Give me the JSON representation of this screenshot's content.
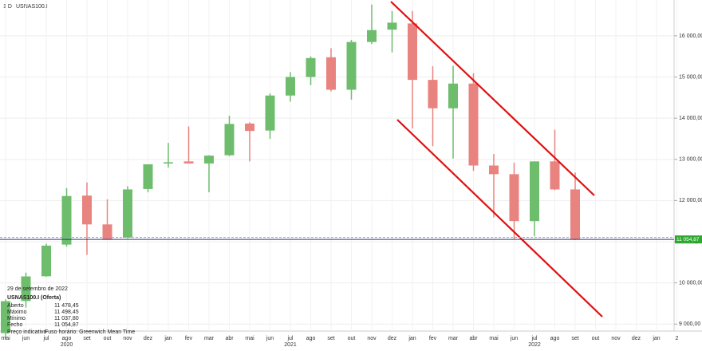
{
  "chart_data": {
    "type": "candlestick",
    "timeframe": "1 D",
    "symbol": "USNAS100.I",
    "categories": [
      "mai",
      "jun",
      "jul",
      "ago",
      "set",
      "out",
      "nov",
      "dez",
      "jan",
      "fev",
      "mar",
      "abr",
      "mai",
      "jun",
      "jul",
      "ago",
      "set",
      "out",
      "nov",
      "dez",
      "jan",
      "fev",
      "mar",
      "abr",
      "mai",
      "jun",
      "jul",
      "ago",
      "set",
      "out",
      "nov",
      "dez",
      "jan",
      "2"
    ],
    "years": [
      {
        "label": "2020",
        "at": 3
      },
      {
        "label": "2021",
        "at": 14
      },
      {
        "label": "2022",
        "at": 26
      }
    ],
    "open": [
      8780,
      9560,
      10160,
      10930,
      12120,
      11420,
      11100,
      12280,
      12900,
      12950,
      12900,
      13100,
      13870,
      13700,
      14550,
      15000,
      15480,
      14690,
      15850,
      16150,
      16300,
      14930,
      14240,
      14840,
      12850,
      12640,
      11500,
      12950,
      12270,
      null,
      null,
      null,
      null,
      null
    ],
    "high": [
      9600,
      10250,
      10950,
      12300,
      12440,
      12030,
      12350,
      12880,
      13400,
      13800,
      13100,
      14060,
      13900,
      14600,
      15120,
      15500,
      15700,
      15900,
      16760,
      16600,
      16600,
      15260,
      15270,
      15090,
      13130,
      12920,
      12950,
      13720,
      12680,
      null,
      null,
      null,
      null,
      null
    ],
    "low": [
      8650,
      9400,
      10150,
      10880,
      10680,
      11050,
      11080,
      12200,
      12800,
      12950,
      12200,
      13080,
      12950,
      13500,
      14400,
      14800,
      14650,
      14450,
      15800,
      15600,
      13750,
      13320,
      13020,
      12720,
      11590,
      11070,
      11130,
      12250,
      11040,
      null,
      null,
      null,
      null,
      null
    ],
    "close": [
      9555,
      10157,
      10905,
      12110,
      11420,
      11050,
      12270,
      12880,
      12930,
      12900,
      13090,
      13860,
      13690,
      14550,
      15000,
      15460,
      14690,
      15850,
      16140,
      16320,
      14930,
      14240,
      14840,
      12850,
      12640,
      11500,
      12950,
      12270,
      11055,
      null,
      null,
      null,
      null,
      null
    ],
    "up_color": "#6dbd6d",
    "down_color": "#e8837f",
    "ylim": [
      8830,
      16870
    ],
    "yticks": [
      {
        "value": 9000,
        "label": "9 000,00"
      },
      {
        "value": 10000,
        "label": "10 000,00"
      },
      {
        "value": 11000,
        "label": "11 000,00"
      },
      {
        "value": 12000,
        "label": "12 000,00"
      },
      {
        "value": 13000,
        "label": "13 000,00"
      },
      {
        "value": 14000,
        "label": "14 000,00"
      },
      {
        "value": 15000,
        "label": "15 000,00"
      },
      {
        "value": 16000,
        "label": "16 000,00"
      }
    ],
    "last_price": {
      "value": 11054.87,
      "label": "11 054,87"
    },
    "info": {
      "date": "29 de setembro de 2022",
      "title": "USNAS100.I (Oferta)",
      "rows": [
        [
          "Aberto",
          "11 478,45"
        ],
        [
          "Máximo",
          "11 498,45"
        ],
        [
          "Mínimo",
          "11 037,80"
        ],
        [
          "Fecho",
          "11 054,87"
        ]
      ],
      "footer": [
        "Preço indicativo",
        "Fuso horário: Greenwich Mean Time"
      ]
    }
  }
}
